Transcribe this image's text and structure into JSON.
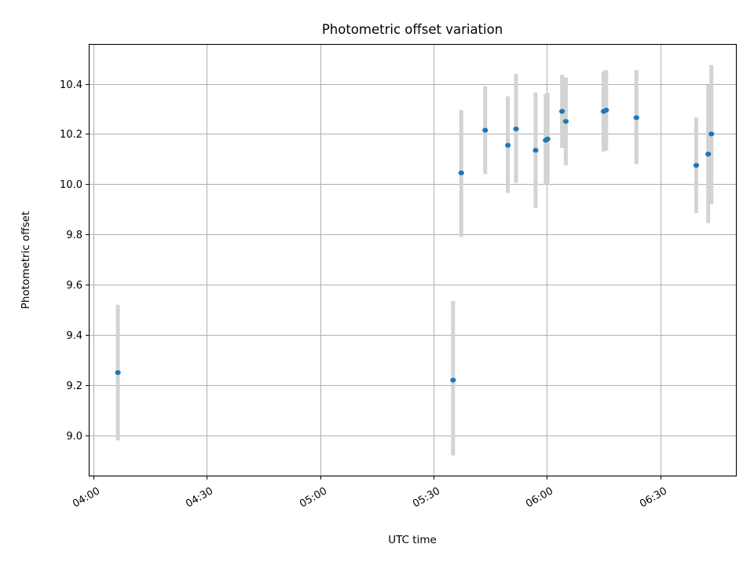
{
  "chart_data": {
    "type": "scatter",
    "title": "Photometric offset variation",
    "xlabel": "UTC time",
    "ylabel": "Photometric offset",
    "xlim": [
      "03:59",
      "06:50"
    ],
    "ylim": [
      8.84,
      10.555
    ],
    "x_ticks": [
      "04:00",
      "04:30",
      "05:00",
      "05:30",
      "06:00",
      "06:30"
    ],
    "y_ticks": [
      9.0,
      9.2,
      9.4,
      9.6,
      9.8,
      10.0,
      10.2,
      10.4
    ],
    "y_tick_labels": [
      "9.0",
      "9.2",
      "9.4",
      "9.6",
      "9.8",
      "10.0",
      "10.2",
      "10.4"
    ],
    "grid": true,
    "colors": {
      "point": "#1f77b4",
      "errorbar": "#d3d3d3"
    },
    "series": [
      {
        "points": [
          {
            "x": "04:06:30",
            "y": 9.25,
            "low": 8.98,
            "high": 9.52
          },
          {
            "x": "05:35:10",
            "y": 9.22,
            "low": 8.92,
            "high": 9.535
          },
          {
            "x": "05:37:20",
            "y": 10.045,
            "low": 9.79,
            "high": 10.295
          },
          {
            "x": "05:43:40",
            "y": 10.215,
            "low": 10.04,
            "high": 10.39
          },
          {
            "x": "05:49:40",
            "y": 10.155,
            "low": 9.965,
            "high": 10.35
          },
          {
            "x": "05:51:50",
            "y": 10.22,
            "low": 10.005,
            "high": 10.44
          },
          {
            "x": "05:57:00",
            "y": 10.135,
            "low": 9.905,
            "high": 10.365
          },
          {
            "x": "05:59:40",
            "y": 10.175,
            "low": 10.0,
            "high": 10.36
          },
          {
            "x": "06:00:10",
            "y": 10.18,
            "low": 10.0,
            "high": 10.365
          },
          {
            "x": "06:04:00",
            "y": 10.29,
            "low": 10.145,
            "high": 10.435
          },
          {
            "x": "06:05:00",
            "y": 10.25,
            "low": 10.075,
            "high": 10.425
          },
          {
            "x": "06:15:00",
            "y": 10.29,
            "low": 10.13,
            "high": 10.45
          },
          {
            "x": "06:15:40",
            "y": 10.295,
            "low": 10.135,
            "high": 10.455
          },
          {
            "x": "06:23:40",
            "y": 10.265,
            "low": 10.08,
            "high": 10.455
          },
          {
            "x": "06:39:30",
            "y": 10.075,
            "low": 9.885,
            "high": 10.265
          },
          {
            "x": "06:42:40",
            "y": 10.12,
            "low": 9.845,
            "high": 10.395
          },
          {
            "x": "06:43:30",
            "y": 10.2,
            "low": 9.92,
            "high": 10.475
          }
        ]
      }
    ]
  }
}
